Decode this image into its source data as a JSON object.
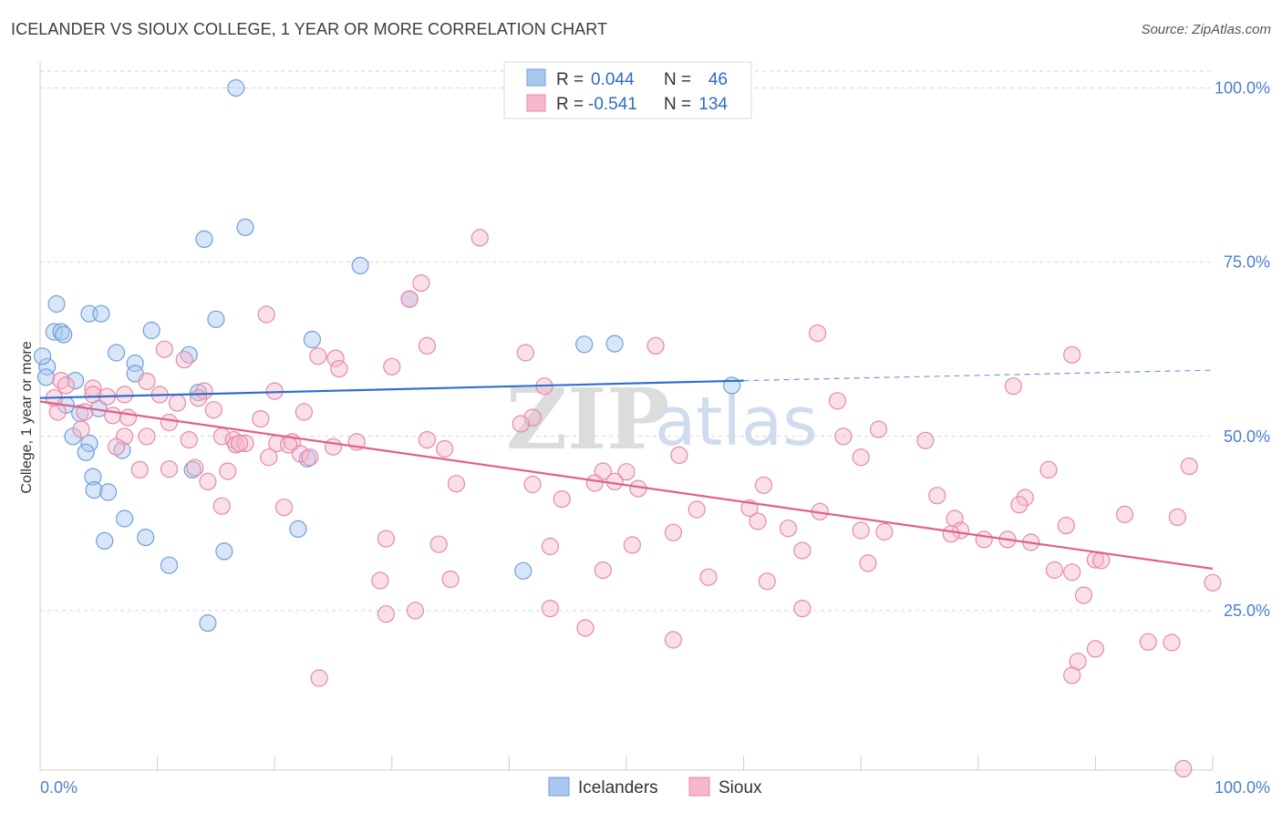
{
  "title": "ICELANDER VS SIOUX COLLEGE, 1 YEAR OR MORE CORRELATION CHART",
  "source": "Source: ZipAtlas.com",
  "watermark": {
    "zip": "ZIP",
    "atlas": "atlas"
  },
  "chart_data": {
    "type": "scatter",
    "ylabel": "College, 1 year or more",
    "xlim": [
      0,
      100
    ],
    "ylim": [
      0,
      100
    ],
    "x_tick_labels": [
      "0.0%",
      "100.0%"
    ],
    "y_tick_labels": [
      {
        "value": 25,
        "label": "25.0%"
      },
      {
        "value": 50,
        "label": "50.0%"
      },
      {
        "value": 75,
        "label": "75.0%"
      },
      {
        "value": 100,
        "label": "100.0%"
      }
    ],
    "grid": "horizontal-dashed",
    "legend_position": "bottom-center",
    "stats": [
      {
        "r_label": "R =",
        "r": "0.044",
        "n_label": "N =",
        "n": "46"
      },
      {
        "r_label": "R =",
        "r": "-0.541",
        "n_label": "N =",
        "n": "134"
      }
    ],
    "series": [
      {
        "name": "Icelanders",
        "color": "#a8c8ee",
        "stroke": "#6f9fdc",
        "line_color": "#2f6fd0",
        "trend": {
          "x0": 0,
          "y0": 55.5,
          "x1": 60,
          "y1": 58.0,
          "dash_to": 100,
          "dash_y": 59.5
        },
        "points": [
          [
            16.7,
            100.0
          ],
          [
            14.0,
            78.3
          ],
          [
            17.5,
            80.0
          ],
          [
            27.3,
            74.5
          ],
          [
            31.5,
            69.7
          ],
          [
            1.4,
            69.0
          ],
          [
            4.2,
            67.6
          ],
          [
            5.2,
            67.6
          ],
          [
            15.0,
            66.8
          ],
          [
            1.2,
            65.0
          ],
          [
            1.8,
            65.0
          ],
          [
            2.0,
            64.6
          ],
          [
            9.5,
            65.2
          ],
          [
            23.2,
            63.9
          ],
          [
            46.4,
            63.2
          ],
          [
            49.0,
            63.3
          ],
          [
            6.5,
            62.0
          ],
          [
            12.7,
            61.7
          ],
          [
            8.1,
            60.5
          ],
          [
            0.6,
            60.0
          ],
          [
            8.1,
            59.0
          ],
          [
            3.0,
            58.0
          ],
          [
            59.0,
            57.3
          ],
          [
            13.5,
            56.3
          ],
          [
            2.2,
            54.5
          ],
          [
            5.0,
            54.0
          ],
          [
            3.4,
            53.3
          ],
          [
            2.8,
            50.0
          ],
          [
            4.2,
            49.0
          ],
          [
            7.0,
            48.0
          ],
          [
            3.9,
            47.7
          ],
          [
            22.8,
            46.8
          ],
          [
            13.0,
            45.2
          ],
          [
            4.5,
            44.2
          ],
          [
            4.6,
            42.3
          ],
          [
            5.8,
            42.0
          ],
          [
            7.2,
            38.2
          ],
          [
            22.0,
            36.7
          ],
          [
            9.0,
            35.5
          ],
          [
            5.5,
            35.0
          ],
          [
            15.7,
            33.5
          ],
          [
            11.0,
            31.5
          ],
          [
            41.2,
            30.7
          ],
          [
            14.3,
            23.2
          ],
          [
            0.2,
            61.5
          ],
          [
            0.5,
            58.5
          ]
        ]
      },
      {
        "name": "Sioux",
        "color": "#f6b8cc",
        "stroke": "#e48aa8",
        "line_color": "#e0608e",
        "trend": {
          "x0": 0,
          "y0": 55.0,
          "x1": 100,
          "y1": 31.0
        },
        "points": [
          [
            37.5,
            78.5
          ],
          [
            32.5,
            72.0
          ],
          [
            31.5,
            69.7
          ],
          [
            19.3,
            67.5
          ],
          [
            66.3,
            64.8
          ],
          [
            10.6,
            62.5
          ],
          [
            52.5,
            63.0
          ],
          [
            33.0,
            63.0
          ],
          [
            23.7,
            61.5
          ],
          [
            41.4,
            62.0
          ],
          [
            25.2,
            61.2
          ],
          [
            12.3,
            61.0
          ],
          [
            30.0,
            60.0
          ],
          [
            25.5,
            59.7
          ],
          [
            88.0,
            61.7
          ],
          [
            1.8,
            58.0
          ],
          [
            9.1,
            57.9
          ],
          [
            2.2,
            57.3
          ],
          [
            4.5,
            56.9
          ],
          [
            43.0,
            57.2
          ],
          [
            83.0,
            57.2
          ],
          [
            4.5,
            56.0
          ],
          [
            7.2,
            56.0
          ],
          [
            10.2,
            56.0
          ],
          [
            14.0,
            56.5
          ],
          [
            20.0,
            56.5
          ],
          [
            13.5,
            55.5
          ],
          [
            5.7,
            55.7
          ],
          [
            11.7,
            54.8
          ],
          [
            68.0,
            55.1
          ],
          [
            14.8,
            53.8
          ],
          [
            1.5,
            53.5
          ],
          [
            22.5,
            53.5
          ],
          [
            3.8,
            53.5
          ],
          [
            6.2,
            53.0
          ],
          [
            7.5,
            52.7
          ],
          [
            42.0,
            52.7
          ],
          [
            11.0,
            52.0
          ],
          [
            18.8,
            52.5
          ],
          [
            41.0,
            51.8
          ],
          [
            3.5,
            51.0
          ],
          [
            71.5,
            51.0
          ],
          [
            9.1,
            50.0
          ],
          [
            15.5,
            50.0
          ],
          [
            68.5,
            50.0
          ],
          [
            16.5,
            49.5
          ],
          [
            7.2,
            50.0
          ],
          [
            20.2,
            49.0
          ],
          [
            27.0,
            49.2
          ],
          [
            12.7,
            49.5
          ],
          [
            25.0,
            48.5
          ],
          [
            34.5,
            48.2
          ],
          [
            21.5,
            49.2
          ],
          [
            21.2,
            48.8
          ],
          [
            16.7,
            48.8
          ],
          [
            17.5,
            49.0
          ],
          [
            33.0,
            49.5
          ],
          [
            17.0,
            49.0
          ],
          [
            75.5,
            49.4
          ],
          [
            6.5,
            48.5
          ],
          [
            22.2,
            47.5
          ],
          [
            23.0,
            47.0
          ],
          [
            19.5,
            47.0
          ],
          [
            70.0,
            47.0
          ],
          [
            54.5,
            47.3
          ],
          [
            48.0,
            45.0
          ],
          [
            50.0,
            44.9
          ],
          [
            8.5,
            45.2
          ],
          [
            11.0,
            45.3
          ],
          [
            13.2,
            45.5
          ],
          [
            16.0,
            45.0
          ],
          [
            86.0,
            45.2
          ],
          [
            98.0,
            45.7
          ],
          [
            35.5,
            43.2
          ],
          [
            42.0,
            43.1
          ],
          [
            47.3,
            43.3
          ],
          [
            49.0,
            43.5
          ],
          [
            61.7,
            43.0
          ],
          [
            14.3,
            43.5
          ],
          [
            51.0,
            42.5
          ],
          [
            76.5,
            41.5
          ],
          [
            44.5,
            41.0
          ],
          [
            84.0,
            41.2
          ],
          [
            15.5,
            40.0
          ],
          [
            83.5,
            40.2
          ],
          [
            20.8,
            39.8
          ],
          [
            56.0,
            39.5
          ],
          [
            60.5,
            39.7
          ],
          [
            66.5,
            39.2
          ],
          [
            92.5,
            38.8
          ],
          [
            78.0,
            38.2
          ],
          [
            97.0,
            38.4
          ],
          [
            61.2,
            37.8
          ],
          [
            87.5,
            37.2
          ],
          [
            63.8,
            36.8
          ],
          [
            70.0,
            36.5
          ],
          [
            72.0,
            36.3
          ],
          [
            54.0,
            36.2
          ],
          [
            78.5,
            36.5
          ],
          [
            77.7,
            36.0
          ],
          [
            29.5,
            35.3
          ],
          [
            34.0,
            34.5
          ],
          [
            43.5,
            34.2
          ],
          [
            50.5,
            34.4
          ],
          [
            80.5,
            35.2
          ],
          [
            82.5,
            35.2
          ],
          [
            84.5,
            34.8
          ],
          [
            65.0,
            33.6
          ],
          [
            70.6,
            31.8
          ],
          [
            90.0,
            32.3
          ],
          [
            90.5,
            32.2
          ],
          [
            48.0,
            30.8
          ],
          [
            86.5,
            30.8
          ],
          [
            88.0,
            30.5
          ],
          [
            29.0,
            29.3
          ],
          [
            35.0,
            29.5
          ],
          [
            57.0,
            29.8
          ],
          [
            62.0,
            29.2
          ],
          [
            100.0,
            29.0
          ],
          [
            89.0,
            27.2
          ],
          [
            43.5,
            25.3
          ],
          [
            65.0,
            25.3
          ],
          [
            29.5,
            24.5
          ],
          [
            32.0,
            25.0
          ],
          [
            46.5,
            22.5
          ],
          [
            54.0,
            20.8
          ],
          [
            94.5,
            20.5
          ],
          [
            96.5,
            20.4
          ],
          [
            90.0,
            19.5
          ],
          [
            88.5,
            17.7
          ],
          [
            23.8,
            15.3
          ],
          [
            88.0,
            15.7
          ],
          [
            97.5,
            2.3
          ],
          [
            1.2,
            55.5
          ]
        ]
      }
    ]
  }
}
